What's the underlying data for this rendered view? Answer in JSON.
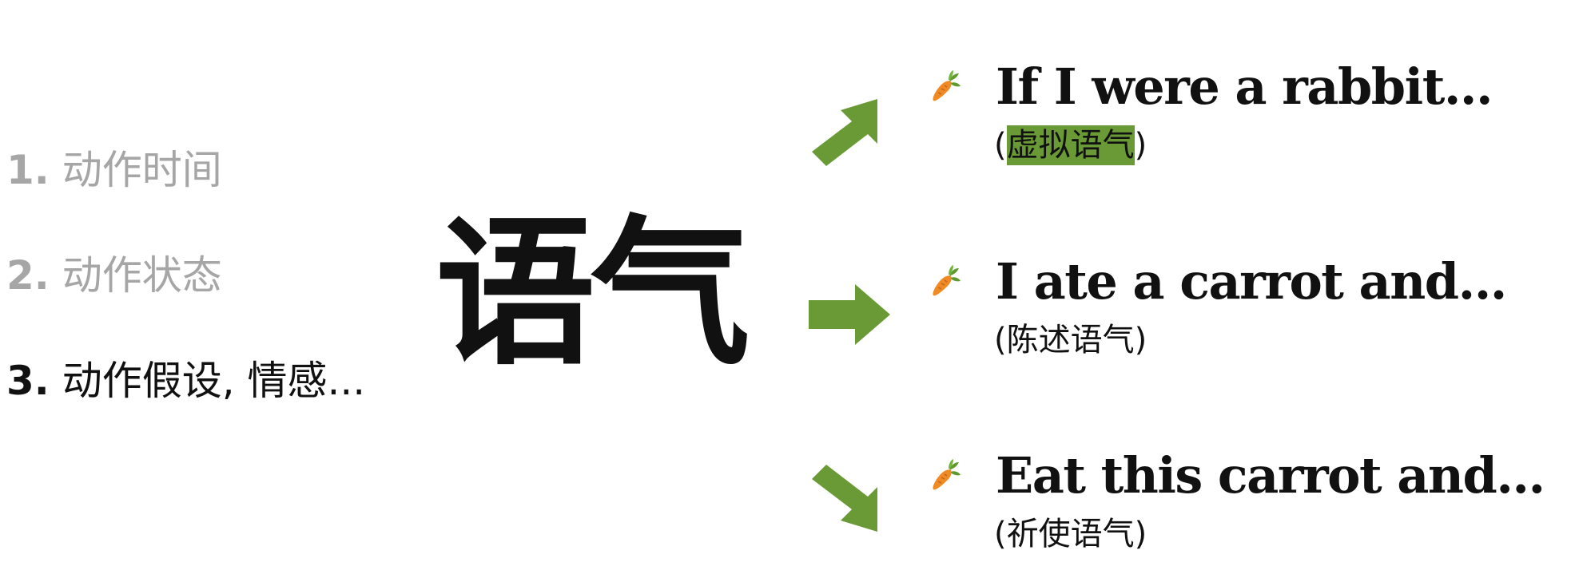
{
  "topics": [
    {
      "number": "1.",
      "text": "动作时间",
      "state": "dim"
    },
    {
      "number": "2.",
      "text": "动作状态",
      "state": "dim"
    },
    {
      "number": "3.",
      "text": "动作假设, 情感...",
      "state": "active"
    }
  ],
  "center_word": "语气",
  "accent_color": "#6a9a35",
  "moods": [
    {
      "icon": "carrot-icon",
      "arrow": "arrow-up-right-icon",
      "sentence": "If I were a rabbit...",
      "open": "(",
      "name": "虚拟语气",
      "close": ")",
      "highlighted": true
    },
    {
      "icon": "carrot-icon",
      "arrow": "arrow-right-icon",
      "sentence": "I ate a carrot and...",
      "open": "(",
      "name": "陈述语气",
      "close": ")",
      "highlighted": false
    },
    {
      "icon": "carrot-icon",
      "arrow": "arrow-down-right-icon",
      "sentence": "Eat this carrot and...",
      "open": "(",
      "name": "祈使语气",
      "close": ")",
      "highlighted": false
    }
  ]
}
